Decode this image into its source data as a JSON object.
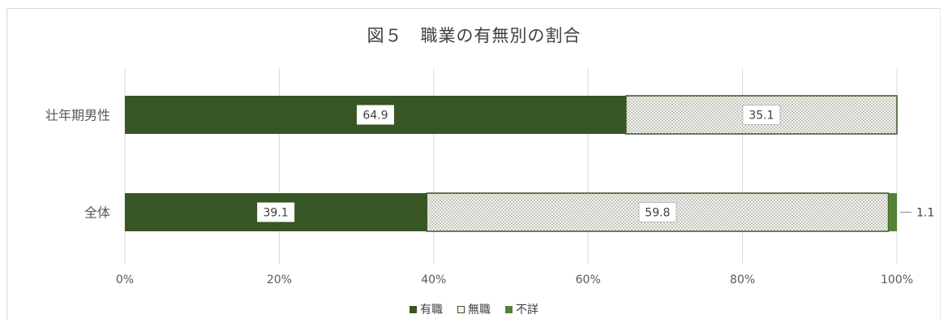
{
  "title": "図５　職業の有無別の割合",
  "colors": {
    "employed": "#375623",
    "unknown": "#548235",
    "unemployed_fill": "#f4f4ee",
    "unemployed_dot": "#7f7f7f",
    "grid": "#d9d9d9",
    "text": "#595959"
  },
  "chart_data": {
    "type": "bar",
    "orientation": "horizontal",
    "stacked": "percent",
    "categories": [
      "壮年期男性",
      "全体"
    ],
    "series": [
      {
        "name": "有職",
        "values": [
          64.9,
          39.1
        ],
        "labels": [
          "64.9",
          "39.1"
        ]
      },
      {
        "name": "無職",
        "values": [
          35.1,
          59.8
        ],
        "labels": [
          "35.1",
          "59.8"
        ]
      },
      {
        "name": "不詳",
        "values": [
          0,
          1.1
        ],
        "labels": [
          "",
          "1.1"
        ]
      }
    ],
    "xlim": [
      0,
      100
    ],
    "xticks": [
      "0%",
      "20%",
      "40%",
      "60%",
      "80%",
      "100%"
    ],
    "grid": true,
    "legend_position": "bottom"
  }
}
